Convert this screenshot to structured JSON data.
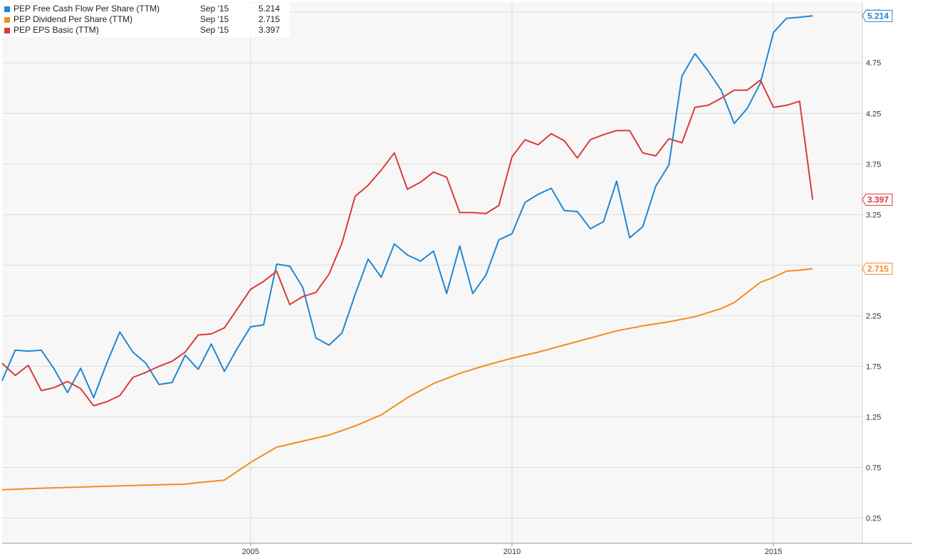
{
  "chart_data": {
    "type": "line",
    "y_ticks": [
      0.25,
      0.75,
      1.25,
      1.75,
      2.25,
      2.75,
      3.25,
      3.75,
      4.25,
      4.75,
      5.25
    ],
    "x_ticks": [
      2005,
      2010,
      2015
    ],
    "ylim": [
      0.0,
      5.35
    ],
    "xlim": [
      2000.25,
      2016.7
    ],
    "grid": true,
    "legend_position": "top-left",
    "series": [
      {
        "name": "PEP Free Cash Flow Per Share (TTM)",
        "date_label": "Sep '15",
        "last_value": "5.214",
        "color": "#1f87d3",
        "points": [
          [
            2000.25,
            1.61
          ],
          [
            2000.5,
            1.91
          ],
          [
            2000.75,
            1.9
          ],
          [
            2001.0,
            1.91
          ],
          [
            2001.25,
            1.72
          ],
          [
            2001.5,
            1.49
          ],
          [
            2001.75,
            1.73
          ],
          [
            2002.0,
            1.44
          ],
          [
            2002.25,
            1.78
          ],
          [
            2002.5,
            2.09
          ],
          [
            2002.75,
            1.89
          ],
          [
            2003.0,
            1.78
          ],
          [
            2003.25,
            1.57
          ],
          [
            2003.5,
            1.59
          ],
          [
            2003.75,
            1.86
          ],
          [
            2004.0,
            1.72
          ],
          [
            2004.25,
            1.97
          ],
          [
            2004.5,
            1.7
          ],
          [
            2004.75,
            1.93
          ],
          [
            2005.0,
            2.14
          ],
          [
            2005.25,
            2.16
          ],
          [
            2005.5,
            2.76
          ],
          [
            2005.75,
            2.74
          ],
          [
            2006.0,
            2.53
          ],
          [
            2006.25,
            2.03
          ],
          [
            2006.5,
            1.96
          ],
          [
            2006.75,
            2.08
          ],
          [
            2007.0,
            2.46
          ],
          [
            2007.25,
            2.81
          ],
          [
            2007.5,
            2.63
          ],
          [
            2007.75,
            2.96
          ],
          [
            2008.0,
            2.85
          ],
          [
            2008.25,
            2.79
          ],
          [
            2008.5,
            2.89
          ],
          [
            2008.75,
            2.47
          ],
          [
            2009.0,
            2.94
          ],
          [
            2009.25,
            2.47
          ],
          [
            2009.5,
            2.65
          ],
          [
            2009.75,
            3.0
          ],
          [
            2010.0,
            3.06
          ],
          [
            2010.25,
            3.37
          ],
          [
            2010.5,
            3.45
          ],
          [
            2010.75,
            3.51
          ],
          [
            2011.0,
            3.29
          ],
          [
            2011.25,
            3.28
          ],
          [
            2011.5,
            3.11
          ],
          [
            2011.75,
            3.18
          ],
          [
            2012.0,
            3.58
          ],
          [
            2012.25,
            3.02
          ],
          [
            2012.5,
            3.13
          ],
          [
            2012.75,
            3.53
          ],
          [
            2013.0,
            3.74
          ],
          [
            2013.25,
            4.62
          ],
          [
            2013.5,
            4.84
          ],
          [
            2013.75,
            4.67
          ],
          [
            2014.0,
            4.48
          ],
          [
            2014.25,
            4.15
          ],
          [
            2014.5,
            4.3
          ],
          [
            2014.75,
            4.55
          ],
          [
            2015.0,
            5.05
          ],
          [
            2015.25,
            5.19
          ],
          [
            2015.5,
            5.2
          ],
          [
            2015.75,
            5.214
          ]
        ]
      },
      {
        "name": "PEP Dividend Per Share (TTM)",
        "date_label": "Sep '15",
        "last_value": "2.715",
        "color": "#f68b1f",
        "points": [
          [
            2000.25,
            0.53
          ],
          [
            2001.0,
            0.545
          ],
          [
            2002.0,
            0.56
          ],
          [
            2003.0,
            0.575
          ],
          [
            2003.75,
            0.585
          ],
          [
            2004.0,
            0.6
          ],
          [
            2004.5,
            0.625
          ],
          [
            2005.0,
            0.8
          ],
          [
            2005.5,
            0.95
          ],
          [
            2006.0,
            1.01
          ],
          [
            2006.5,
            1.07
          ],
          [
            2007.0,
            1.16
          ],
          [
            2007.5,
            1.27
          ],
          [
            2008.0,
            1.44
          ],
          [
            2008.5,
            1.58
          ],
          [
            2009.0,
            1.68
          ],
          [
            2009.5,
            1.76
          ],
          [
            2010.0,
            1.83
          ],
          [
            2010.5,
            1.89
          ],
          [
            2011.0,
            1.96
          ],
          [
            2011.5,
            2.03
          ],
          [
            2012.0,
            2.1
          ],
          [
            2012.5,
            2.15
          ],
          [
            2013.0,
            2.19
          ],
          [
            2013.5,
            2.24
          ],
          [
            2014.0,
            2.32
          ],
          [
            2014.25,
            2.38
          ],
          [
            2014.5,
            2.48
          ],
          [
            2014.75,
            2.58
          ],
          [
            2015.0,
            2.63
          ],
          [
            2015.25,
            2.69
          ],
          [
            2015.5,
            2.7
          ],
          [
            2015.75,
            2.715
          ]
        ]
      },
      {
        "name": "PEP EPS Basic (TTM)",
        "date_label": "Sep '15",
        "last_value": "3.397",
        "color": "#db3a3a",
        "points": [
          [
            2000.25,
            1.78
          ],
          [
            2000.5,
            1.66
          ],
          [
            2000.75,
            1.76
          ],
          [
            2001.0,
            1.51
          ],
          [
            2001.25,
            1.54
          ],
          [
            2001.5,
            1.6
          ],
          [
            2001.75,
            1.53
          ],
          [
            2002.0,
            1.36
          ],
          [
            2002.25,
            1.4
          ],
          [
            2002.5,
            1.46
          ],
          [
            2002.75,
            1.64
          ],
          [
            2003.0,
            1.69
          ],
          [
            2003.25,
            1.75
          ],
          [
            2003.5,
            1.8
          ],
          [
            2003.75,
            1.89
          ],
          [
            2004.0,
            2.06
          ],
          [
            2004.25,
            2.07
          ],
          [
            2004.5,
            2.13
          ],
          [
            2004.75,
            2.32
          ],
          [
            2005.0,
            2.51
          ],
          [
            2005.25,
            2.59
          ],
          [
            2005.5,
            2.69
          ],
          [
            2005.75,
            2.36
          ],
          [
            2006.0,
            2.44
          ],
          [
            2006.25,
            2.48
          ],
          [
            2006.5,
            2.66
          ],
          [
            2006.75,
            2.97
          ],
          [
            2007.0,
            3.43
          ],
          [
            2007.25,
            3.54
          ],
          [
            2007.5,
            3.69
          ],
          [
            2007.75,
            3.86
          ],
          [
            2008.0,
            3.5
          ],
          [
            2008.25,
            3.57
          ],
          [
            2008.5,
            3.67
          ],
          [
            2008.75,
            3.62
          ],
          [
            2009.0,
            3.27
          ],
          [
            2009.25,
            3.27
          ],
          [
            2009.5,
            3.26
          ],
          [
            2009.75,
            3.34
          ],
          [
            2010.0,
            3.82
          ],
          [
            2010.25,
            3.99
          ],
          [
            2010.5,
            3.94
          ],
          [
            2010.75,
            4.05
          ],
          [
            2011.0,
            3.98
          ],
          [
            2011.25,
            3.81
          ],
          [
            2011.5,
            3.99
          ],
          [
            2011.75,
            4.04
          ],
          [
            2012.0,
            4.08
          ],
          [
            2012.25,
            4.08
          ],
          [
            2012.5,
            3.86
          ],
          [
            2012.75,
            3.83
          ],
          [
            2013.0,
            4.0
          ],
          [
            2013.25,
            3.96
          ],
          [
            2013.5,
            4.31
          ],
          [
            2013.75,
            4.33
          ],
          [
            2014.0,
            4.4
          ],
          [
            2014.25,
            4.48
          ],
          [
            2014.5,
            4.48
          ],
          [
            2014.75,
            4.58
          ],
          [
            2015.0,
            4.31
          ],
          [
            2015.25,
            4.33
          ],
          [
            2015.5,
            4.37
          ],
          [
            2015.75,
            3.397
          ]
        ]
      }
    ]
  }
}
